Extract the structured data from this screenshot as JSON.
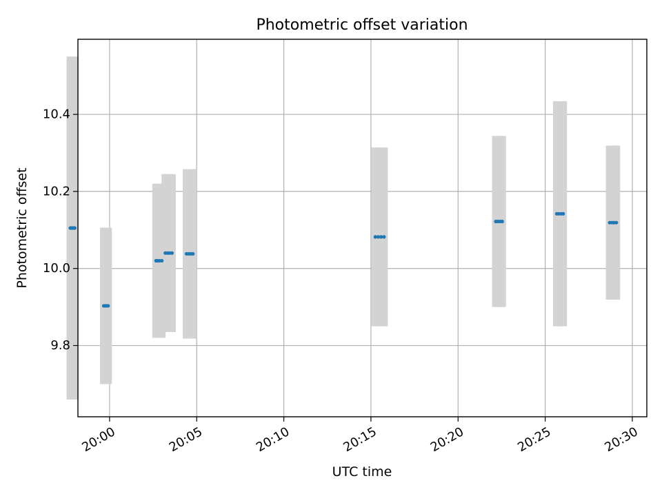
{
  "chart_data": {
    "type": "scatter",
    "title": "Photometric offset variation",
    "xlabel": "UTC time",
    "ylabel": "Photometric offset",
    "grid": true,
    "legend": false,
    "x_axis": {
      "type": "time",
      "range": [
        "19:58:11",
        "20:30:50"
      ],
      "ticks": [
        "20:00",
        "20:05",
        "20:10",
        "20:15",
        "20:20",
        "20:25",
        "20:30"
      ]
    },
    "y_axis": {
      "range": [
        9.615,
        10.595
      ],
      "ticks": [
        "9.8",
        "10.0",
        "10.2",
        "10.4"
      ]
    },
    "colors": {
      "point": "#1f77b4",
      "errorbar": "#d3d3d3",
      "grid": "#b0b0b0"
    },
    "points": [
      {
        "x": "19:57:45",
        "y": 10.105,
        "err": 0.445
      },
      {
        "x": "19:57:50",
        "y": 10.105,
        "err": 0.445
      },
      {
        "x": "19:57:55",
        "y": 10.105,
        "err": 0.445
      },
      {
        "x": "19:58:00",
        "y": 10.105,
        "err": 0.445
      },
      {
        "x": "19:59:40",
        "y": 9.903,
        "err": 0.203
      },
      {
        "x": "19:59:45",
        "y": 9.903,
        "err": 0.203
      },
      {
        "x": "19:59:50",
        "y": 9.903,
        "err": 0.203
      },
      {
        "x": "19:59:55",
        "y": 9.903,
        "err": 0.203
      },
      {
        "x": "20:02:40",
        "y": 10.02,
        "err": 0.2
      },
      {
        "x": "20:02:45",
        "y": 10.02,
        "err": 0.2
      },
      {
        "x": "20:02:52",
        "y": 10.02,
        "err": 0.2
      },
      {
        "x": "20:03:00",
        "y": 10.02,
        "err": 0.2
      },
      {
        "x": "20:03:12",
        "y": 10.04,
        "err": 0.205
      },
      {
        "x": "20:03:20",
        "y": 10.04,
        "err": 0.205
      },
      {
        "x": "20:03:27",
        "y": 10.04,
        "err": 0.205
      },
      {
        "x": "20:03:35",
        "y": 10.04,
        "err": 0.205
      },
      {
        "x": "20:04:25",
        "y": 10.038,
        "err": 0.22
      },
      {
        "x": "20:04:32",
        "y": 10.038,
        "err": 0.22
      },
      {
        "x": "20:04:40",
        "y": 10.038,
        "err": 0.22
      },
      {
        "x": "20:04:47",
        "y": 10.038,
        "err": 0.22
      },
      {
        "x": "20:15:15",
        "y": 10.082,
        "err": 0.232
      },
      {
        "x": "20:15:25",
        "y": 10.082,
        "err": 0.232
      },
      {
        "x": "20:15:35",
        "y": 10.082,
        "err": 0.232
      },
      {
        "x": "20:15:45",
        "y": 10.082,
        "err": 0.232
      },
      {
        "x": "20:22:10",
        "y": 10.122,
        "err": 0.222
      },
      {
        "x": "20:22:17",
        "y": 10.122,
        "err": 0.222
      },
      {
        "x": "20:22:25",
        "y": 10.122,
        "err": 0.222
      },
      {
        "x": "20:22:32",
        "y": 10.122,
        "err": 0.222
      },
      {
        "x": "20:25:40",
        "y": 10.142,
        "err": 0.292
      },
      {
        "x": "20:25:47",
        "y": 10.142,
        "err": 0.292
      },
      {
        "x": "20:25:55",
        "y": 10.142,
        "err": 0.292
      },
      {
        "x": "20:26:02",
        "y": 10.142,
        "err": 0.292
      },
      {
        "x": "20:28:42",
        "y": 10.119,
        "err": 0.2
      },
      {
        "x": "20:28:50",
        "y": 10.119,
        "err": 0.2
      },
      {
        "x": "20:28:57",
        "y": 10.119,
        "err": 0.2
      },
      {
        "x": "20:29:05",
        "y": 10.119,
        "err": 0.2
      }
    ]
  }
}
